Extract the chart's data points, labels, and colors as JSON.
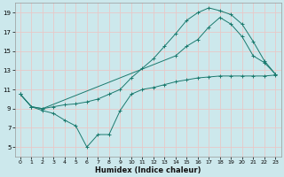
{
  "xlabel": "Humidex (Indice chaleur)",
  "bg_color": "#cce8ec",
  "grid_color": "#e8c8c8",
  "line_color": "#1a7a6e",
  "xlim": [
    -0.5,
    23.5
  ],
  "ylim": [
    4,
    20
  ],
  "yticks": [
    5,
    7,
    9,
    11,
    13,
    15,
    17,
    19
  ],
  "xticks": [
    0,
    1,
    2,
    3,
    4,
    5,
    6,
    7,
    8,
    9,
    10,
    11,
    12,
    13,
    14,
    15,
    16,
    17,
    18,
    19,
    20,
    21,
    22,
    23
  ],
  "line1_x": [
    0,
    1,
    2,
    3,
    4,
    5,
    6,
    7,
    8,
    9,
    10,
    11,
    12,
    13,
    14,
    15,
    16,
    17,
    18,
    19,
    20,
    21,
    22,
    23
  ],
  "line1_y": [
    10.5,
    9.2,
    9.0,
    9.2,
    9.4,
    9.5,
    9.7,
    10.0,
    10.5,
    11.0,
    12.2,
    13.2,
    14.2,
    15.5,
    16.8,
    18.2,
    19.0,
    19.5,
    19.2,
    18.8,
    17.8,
    16.0,
    14.0,
    12.6
  ],
  "line2_x": [
    0,
    1,
    2,
    14,
    15,
    16,
    17,
    18,
    19,
    20,
    21,
    22,
    23
  ],
  "line2_y": [
    10.5,
    9.2,
    9.0,
    14.5,
    15.5,
    16.2,
    17.5,
    18.5,
    17.8,
    16.5,
    14.5,
    13.8,
    12.6
  ],
  "line3_x": [
    0,
    1,
    2,
    3,
    4,
    5,
    6,
    7,
    8,
    9,
    10,
    11,
    12,
    13,
    14,
    15,
    16,
    17,
    18,
    19,
    20,
    21,
    22,
    23
  ],
  "line3_y": [
    10.5,
    9.2,
    8.8,
    8.5,
    7.8,
    7.2,
    5.0,
    6.3,
    6.3,
    8.8,
    10.5,
    11.0,
    11.2,
    11.5,
    11.8,
    12.0,
    12.2,
    12.3,
    12.4,
    12.4,
    12.4,
    12.4,
    12.4,
    12.5
  ]
}
